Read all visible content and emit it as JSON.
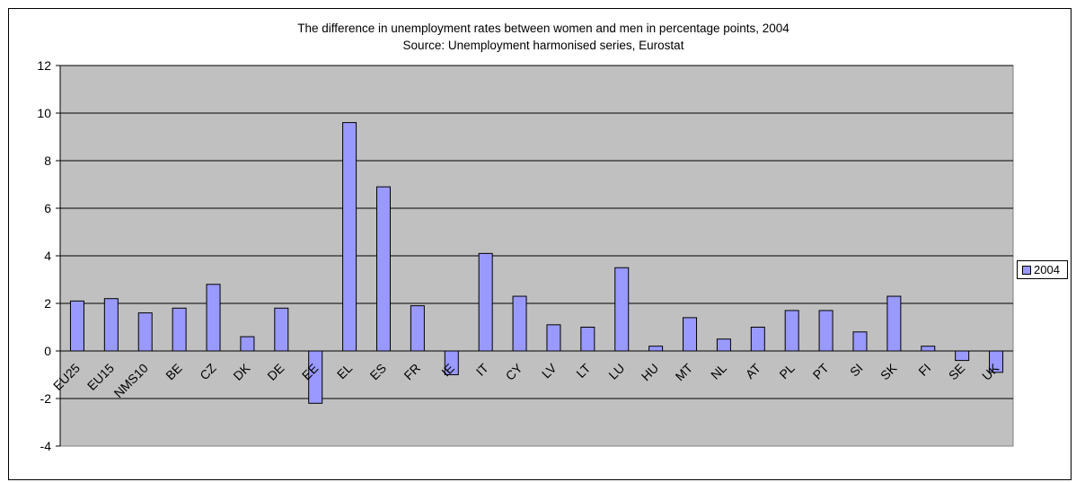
{
  "chart_data": {
    "type": "bar",
    "title": "The difference in unemployment rates between women and men in percentage points, 2004",
    "subtitle": "Source: Unemployment harmonised series, Eurostat",
    "categories": [
      "EU25",
      "EU15",
      "NMS10",
      "BE",
      "CZ",
      "DK",
      "DE",
      "EE",
      "EL",
      "ES",
      "FR",
      "IE",
      "IT",
      "CY",
      "LV",
      "LT",
      "LU",
      "HU",
      "MT",
      "NL",
      "AT",
      "PL",
      "PT",
      "SI",
      "SK",
      "FI",
      "SE",
      "UK"
    ],
    "series": [
      {
        "name": "2004",
        "values": [
          2.1,
          2.2,
          1.6,
          1.8,
          2.8,
          0.6,
          1.8,
          -2.2,
          9.6,
          6.9,
          1.9,
          -1.0,
          4.1,
          2.3,
          1.1,
          1.0,
          3.5,
          0.2,
          1.4,
          0.5,
          1.0,
          1.7,
          1.7,
          0.8,
          2.3,
          0.2,
          -0.4,
          -0.9
        ]
      }
    ],
    "ylim": [
      -4,
      12
    ],
    "yticks": [
      -4,
      -2,
      0,
      2,
      4,
      6,
      8,
      10,
      12
    ],
    "ytick_labels": [
      "-4",
      "-2",
      "0",
      "2",
      "4",
      "6",
      "8",
      "10",
      "12"
    ],
    "grid": true,
    "legend": "right",
    "colors": {
      "bar_fill": "#9999ff",
      "plot_background": "#c0c0c0",
      "gridline": "#000000"
    }
  }
}
